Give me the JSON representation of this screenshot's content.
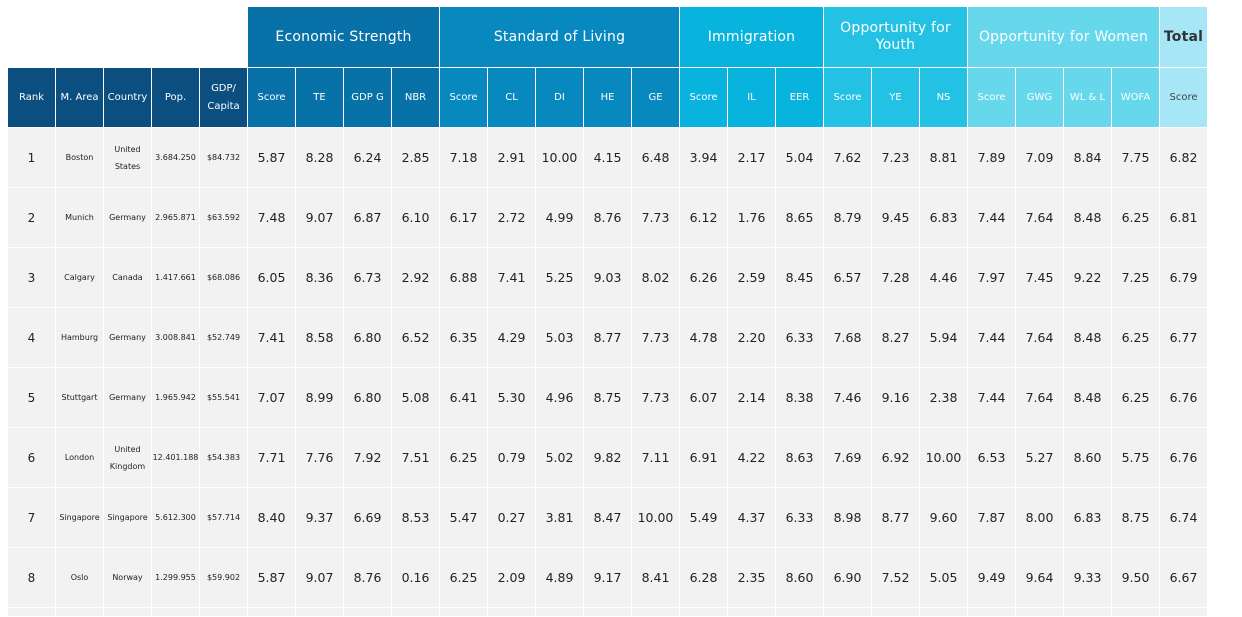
{
  "colors": {
    "base": "#0a4f80",
    "economic": "#0771a8",
    "living": "#0788bf",
    "immigration": "#08b3dd",
    "youth": "#23c1e4",
    "women": "#67d7ec",
    "total": "#a6e6f6"
  },
  "chart_data": {
    "type": "table",
    "group_headers": [
      {
        "label": "",
        "colspan": 5,
        "color_key": "white"
      },
      {
        "label": "Economic Strength",
        "colspan": 4,
        "color_key": "economic"
      },
      {
        "label": "Standard of Living",
        "colspan": 5,
        "color_key": "living"
      },
      {
        "label": "Immigration",
        "colspan": 3,
        "color_key": "immigration"
      },
      {
        "label": "Opportunity for Youth",
        "colspan": 3,
        "color_key": "youth"
      },
      {
        "label": "Opportunity for Women",
        "colspan": 4,
        "color_key": "women"
      },
      {
        "label": "Total",
        "colspan": 1,
        "color_key": "total"
      }
    ],
    "columns": [
      {
        "label": "Rank",
        "color_key": "base"
      },
      {
        "label": "M. Area",
        "color_key": "base"
      },
      {
        "label": "Country",
        "color_key": "base"
      },
      {
        "label": "Pop.",
        "color_key": "base"
      },
      {
        "label": "GDP/ Capita",
        "color_key": "base"
      },
      {
        "label": "Score",
        "color_key": "economic"
      },
      {
        "label": "TE",
        "color_key": "economic"
      },
      {
        "label": "GDP G",
        "color_key": "economic"
      },
      {
        "label": "NBR",
        "color_key": "economic"
      },
      {
        "label": "Score",
        "color_key": "living"
      },
      {
        "label": "CL",
        "color_key": "living"
      },
      {
        "label": "DI",
        "color_key": "living"
      },
      {
        "label": "HE",
        "color_key": "living"
      },
      {
        "label": "GE",
        "color_key": "living"
      },
      {
        "label": "Score",
        "color_key": "immigration"
      },
      {
        "label": "IL",
        "color_key": "immigration"
      },
      {
        "label": "EER",
        "color_key": "immigration"
      },
      {
        "label": "Score",
        "color_key": "youth"
      },
      {
        "label": "YE",
        "color_key": "youth"
      },
      {
        "label": "NS",
        "color_key": "youth"
      },
      {
        "label": "Score",
        "color_key": "women"
      },
      {
        "label": "GWG",
        "color_key": "women"
      },
      {
        "label": "WL & L",
        "color_key": "women"
      },
      {
        "label": "WOFA",
        "color_key": "women"
      },
      {
        "label": "Score",
        "color_key": "total"
      }
    ],
    "rows": [
      [
        "1",
        "Boston",
        "United States",
        "3.684.250",
        "$84.732",
        "5.87",
        "8.28",
        "6.24",
        "2.85",
        "7.18",
        "2.91",
        "10.00",
        "4.15",
        "6.48",
        "3.94",
        "2.17",
        "5.04",
        "7.62",
        "7.23",
        "8.81",
        "7.89",
        "7.09",
        "8.84",
        "7.75",
        "6.82"
      ],
      [
        "2",
        "Munich",
        "Germany",
        "2.965.871",
        "$63.592",
        "7.48",
        "9.07",
        "6.87",
        "6.10",
        "6.17",
        "2.72",
        "4.99",
        "8.76",
        "7.73",
        "6.12",
        "1.76",
        "8.65",
        "8.79",
        "9.45",
        "6.83",
        "7.44",
        "7.64",
        "8.48",
        "6.25",
        "6.81"
      ],
      [
        "3",
        "Calgary",
        "Canada",
        "1.417.661",
        "$68.086",
        "6.05",
        "8.36",
        "6.73",
        "2.92",
        "6.88",
        "7.41",
        "5.25",
        "9.03",
        "8.02",
        "6.26",
        "2.59",
        "8.45",
        "6.57",
        "7.28",
        "4.46",
        "7.97",
        "7.45",
        "9.22",
        "7.25",
        "6.79"
      ],
      [
        "4",
        "Hamburg",
        "Germany",
        "3.008.841",
        "$52.749",
        "7.41",
        "8.58",
        "6.80",
        "6.52",
        "6.35",
        "4.29",
        "5.03",
        "8.77",
        "7.73",
        "4.78",
        "2.20",
        "6.33",
        "7.68",
        "8.27",
        "5.94",
        "7.44",
        "7.64",
        "8.48",
        "6.25",
        "6.77"
      ],
      [
        "5",
        "Stuttgart",
        "Germany",
        "1.965.942",
        "$55.541",
        "7.07",
        "8.99",
        "6.80",
        "5.08",
        "6.41",
        "5.30",
        "4.96",
        "8.75",
        "7.73",
        "6.07",
        "2.14",
        "8.38",
        "7.46",
        "9.16",
        "2.38",
        "7.44",
        "7.64",
        "8.48",
        "6.25",
        "6.76"
      ],
      [
        "6",
        "London",
        "United Kingdom",
        "12.401.188",
        "$54.383",
        "7.71",
        "7.76",
        "7.92",
        "7.51",
        "6.25",
        "0.79",
        "5.02",
        "9.82",
        "7.11",
        "6.91",
        "4.22",
        "8.63",
        "7.69",
        "6.92",
        "10.00",
        "6.53",
        "5.27",
        "8.60",
        "5.75",
        "6.76"
      ],
      [
        "7",
        "Singapore",
        "Singapore",
        "5.612.300",
        "$57.714",
        "8.40",
        "9.37",
        "6.69",
        "8.53",
        "5.47",
        "0.27",
        "3.81",
        "8.47",
        "10.00",
        "5.49",
        "4.37",
        "6.33",
        "8.98",
        "8.77",
        "9.60",
        "7.87",
        "8.00",
        "6.83",
        "8.75",
        "6.74"
      ],
      [
        "8",
        "Oslo",
        "Norway",
        "1.299.955",
        "$59.902",
        "5.87",
        "9.07",
        "8.76",
        "0.16",
        "6.25",
        "2.09",
        "4.89",
        "9.17",
        "8.41",
        "6.28",
        "2.35",
        "8.60",
        "6.90",
        "7.52",
        "5.05",
        "9.49",
        "9.64",
        "9.33",
        "9.50",
        "6.67"
      ]
    ]
  }
}
